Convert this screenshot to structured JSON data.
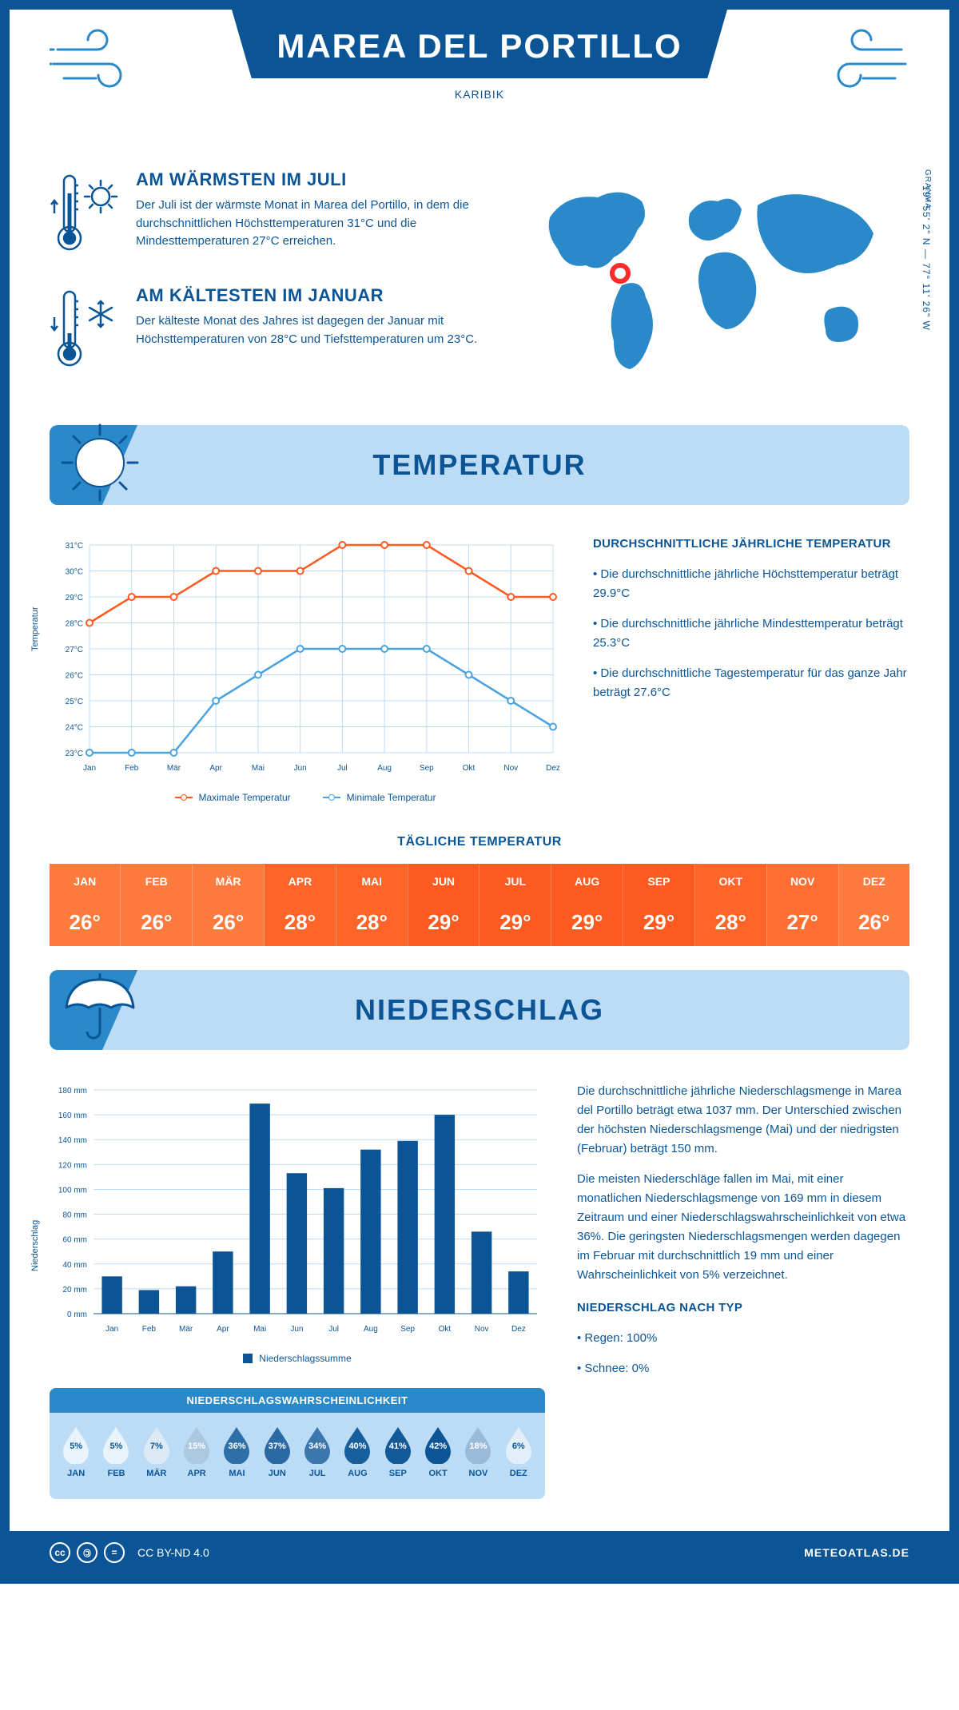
{
  "colors": {
    "primary": "#0b5596",
    "secondary": "#2a8ac9",
    "light": "#bcdcf5",
    "orange_hi": "#ff5a1f",
    "orange_lo": "#ff7a3d",
    "line_max": "#ff5a1f",
    "line_min": "#4aa3df",
    "bar": "#0b5596",
    "grid": "#bcdcf5",
    "white": "#ffffff",
    "marker": "#ff2a2a"
  },
  "header": {
    "title": "MAREA DEL PORTILLO",
    "subtitle": "KARIBIK",
    "region": "GRANMA",
    "coords": "19° 55' 2\" N — 77° 11' 26\" W"
  },
  "facts": {
    "warm_title": "AM WÄRMSTEN IM JULI",
    "warm_text": "Der Juli ist der wärmste Monat in Marea del Portillo, in dem die durchschnittlichen Höchsttemperaturen 31°C und die Mindesttemperaturen 27°C erreichen.",
    "cold_title": "AM KÄLTESTEN IM JANUAR",
    "cold_text": "Der kälteste Monat des Jahres ist dagegen der Januar mit Höchsttemperaturen von 28°C und Tiefsttemperaturen um 23°C."
  },
  "months": [
    "Jan",
    "Feb",
    "Mär",
    "Apr",
    "Mai",
    "Jun",
    "Jul",
    "Aug",
    "Sep",
    "Okt",
    "Nov",
    "Dez"
  ],
  "months_upper": [
    "JAN",
    "FEB",
    "MÄR",
    "APR",
    "MAI",
    "JUN",
    "JUL",
    "AUG",
    "SEP",
    "OKT",
    "NOV",
    "DEZ"
  ],
  "temperature": {
    "section_title": "TEMPERATUR",
    "y_label": "Temperatur",
    "ylim": [
      23,
      31
    ],
    "ytick_step": 1,
    "max_series": [
      28,
      29,
      29,
      30,
      30,
      30,
      31,
      31,
      31,
      30,
      29,
      29
    ],
    "min_series": [
      23,
      23,
      23,
      25,
      26,
      27,
      27,
      27,
      27,
      26,
      25,
      24
    ],
    "legend_max": "Maximale Temperatur",
    "legend_min": "Minimale Temperatur",
    "side_title": "DURCHSCHNITTLICHE JÄHRLICHE TEMPERATUR",
    "side_p1": "• Die durchschnittliche jährliche Höchsttemperatur beträgt 29.9°C",
    "side_p2": "• Die durchschnittliche jährliche Mindesttemperatur beträgt 25.3°C",
    "side_p3": "• Die durchschnittliche Tagestemperatur für das ganze Jahr beträgt 27.6°C",
    "daily_title": "TÄGLICHE TEMPERATUR",
    "daily_values": [
      "26°",
      "26°",
      "26°",
      "28°",
      "28°",
      "29°",
      "29°",
      "29°",
      "29°",
      "28°",
      "27°",
      "26°"
    ]
  },
  "precip": {
    "section_title": "NIEDERSCHLAG",
    "y_label": "Niederschlag",
    "ylim": [
      0,
      180
    ],
    "ytick_step": 20,
    "values": [
      30,
      19,
      22,
      50,
      169,
      113,
      101,
      132,
      139,
      160,
      66,
      34
    ],
    "legend": "Niederschlagssumme",
    "side_p1": "Die durchschnittliche jährliche Niederschlagsmenge in Marea del Portillo beträgt etwa 1037 mm. Der Unterschied zwischen der höchsten Niederschlagsmenge (Mai) und der niedrigsten (Februar) beträgt 150 mm.",
    "side_p2": "Die meisten Niederschläge fallen im Mai, mit einer monatlichen Niederschlagsmenge von 169 mm in diesem Zeitraum und einer Niederschlagswahrscheinlichkeit von etwa 36%. Die geringsten Niederschlagsmengen werden dagegen im Februar mit durchschnittlich 19 mm und einer Wahrscheinlichkeit von 5% verzeichnet.",
    "type_title": "NIEDERSCHLAG NACH TYP",
    "type_p1": "• Regen: 100%",
    "type_p2": "• Schnee: 0%",
    "prob_title": "NIEDERSCHLAGSWAHRSCHEINLICHKEIT",
    "prob_values": [
      5,
      5,
      7,
      15,
      36,
      37,
      34,
      40,
      41,
      42,
      18,
      6
    ]
  },
  "footer": {
    "license": "CC BY-ND 4.0",
    "site": "METEOATLAS.DE"
  }
}
